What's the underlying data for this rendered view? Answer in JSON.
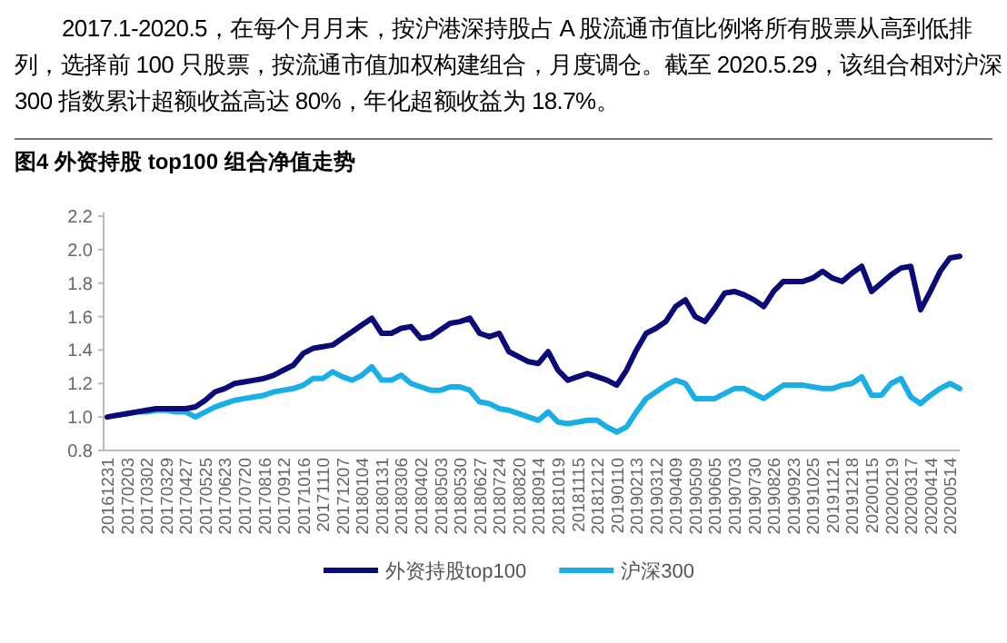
{
  "chart_data": {
    "type": "line",
    "title": "图4  外资持股 top100 组合净值走势",
    "annotations": [
      "2017.1-2020.5，在每个月月末，按沪港深持股占 A 股流通市值比例将所有股票从高到低排列，选择前 100 只股票，按流通市值加权构建组合，月度调仓。截至 2020.5.29，该组合相对沪深 300 指数累计超额收益高达 80%，年化超额收益为 18.7%。"
    ],
    "categories": [
      "20161231",
      null,
      "20170203",
      null,
      "20170302",
      null,
      "20170329",
      null,
      "20170427",
      null,
      "20170525",
      null,
      "20170623",
      null,
      "20170720",
      null,
      "20170816",
      null,
      "20170912",
      null,
      "20171016",
      null,
      "20171110",
      null,
      "20171207",
      null,
      "20180104",
      null,
      "20180131",
      null,
      "20180306",
      null,
      "20180402",
      null,
      "20180503",
      null,
      "20180530",
      null,
      "20180627",
      null,
      "20180724",
      null,
      "20180820",
      null,
      "20180914",
      null,
      "20181019",
      null,
      "20181115",
      null,
      "20181212",
      null,
      "20190110",
      null,
      "20190213",
      null,
      "20190312",
      null,
      "20190409",
      null,
      "20190509",
      null,
      "20190605",
      null,
      "20190703",
      null,
      "20190730",
      null,
      "20190826",
      null,
      "20190923",
      null,
      "20191025",
      null,
      "20191121",
      null,
      "20191218",
      null,
      "20200115",
      null,
      "20200219",
      null,
      "20200317",
      null,
      "20200414",
      null,
      "20200514",
      null
    ],
    "series": [
      {
        "name": "外资持股top100",
        "color": "#0a0a78",
        "values": [
          1.0,
          1.01,
          1.02,
          1.03,
          1.04,
          1.05,
          1.05,
          1.05,
          1.05,
          1.06,
          1.1,
          1.15,
          1.17,
          1.2,
          1.21,
          1.22,
          1.23,
          1.25,
          1.28,
          1.31,
          1.38,
          1.41,
          1.42,
          1.43,
          1.47,
          1.51,
          1.55,
          1.59,
          1.5,
          1.5,
          1.53,
          1.54,
          1.47,
          1.48,
          1.52,
          1.56,
          1.57,
          1.59,
          1.5,
          1.48,
          1.5,
          1.39,
          1.36,
          1.33,
          1.32,
          1.39,
          1.28,
          1.22,
          1.24,
          1.26,
          1.24,
          1.22,
          1.19,
          1.28,
          1.4,
          1.5,
          1.53,
          1.57,
          1.66,
          1.7,
          1.6,
          1.57,
          1.65,
          1.74,
          1.75,
          1.73,
          1.7,
          1.66,
          1.75,
          1.81,
          1.81,
          1.81,
          1.83,
          1.87,
          1.83,
          1.81,
          1.86,
          1.9,
          1.75,
          1.8,
          1.85,
          1.89,
          1.9,
          1.64,
          1.75,
          1.87,
          1.95,
          1.96
        ]
      },
      {
        "name": "沪深300",
        "color": "#1aaee6",
        "values": [
          null,
          null,
          1.02,
          1.03,
          1.03,
          1.04,
          1.04,
          1.03,
          1.03,
          1.0,
          1.03,
          1.06,
          1.08,
          1.1,
          1.11,
          1.12,
          1.13,
          1.15,
          1.16,
          1.17,
          1.19,
          1.23,
          1.23,
          1.27,
          1.24,
          1.22,
          1.25,
          1.3,
          1.22,
          1.22,
          1.25,
          1.2,
          1.18,
          1.16,
          1.16,
          1.18,
          1.18,
          1.16,
          1.09,
          1.08,
          1.05,
          1.04,
          1.02,
          1.0,
          0.98,
          1.03,
          0.97,
          0.96,
          0.97,
          0.98,
          0.98,
          0.94,
          0.91,
          0.94,
          1.03,
          1.11,
          1.15,
          1.19,
          1.22,
          1.2,
          1.11,
          1.11,
          1.11,
          1.14,
          1.17,
          1.17,
          1.14,
          1.11,
          1.15,
          1.19,
          1.19,
          1.19,
          1.18,
          1.17,
          1.17,
          1.19,
          1.2,
          1.24,
          1.13,
          1.13,
          1.2,
          1.23,
          1.12,
          1.08,
          1.13,
          1.17,
          1.2,
          1.17
        ]
      }
    ],
    "ylim": [
      0.8,
      2.2
    ],
    "yticks": [
      0.8,
      {
        "value": 1,
        "label": "1.0"
      },
      1.2,
      1.4,
      1.6,
      1.8,
      {
        "value": 2,
        "label": "2.0"
      },
      2.2
    ],
    "grid": false,
    "legend": "bottom"
  }
}
